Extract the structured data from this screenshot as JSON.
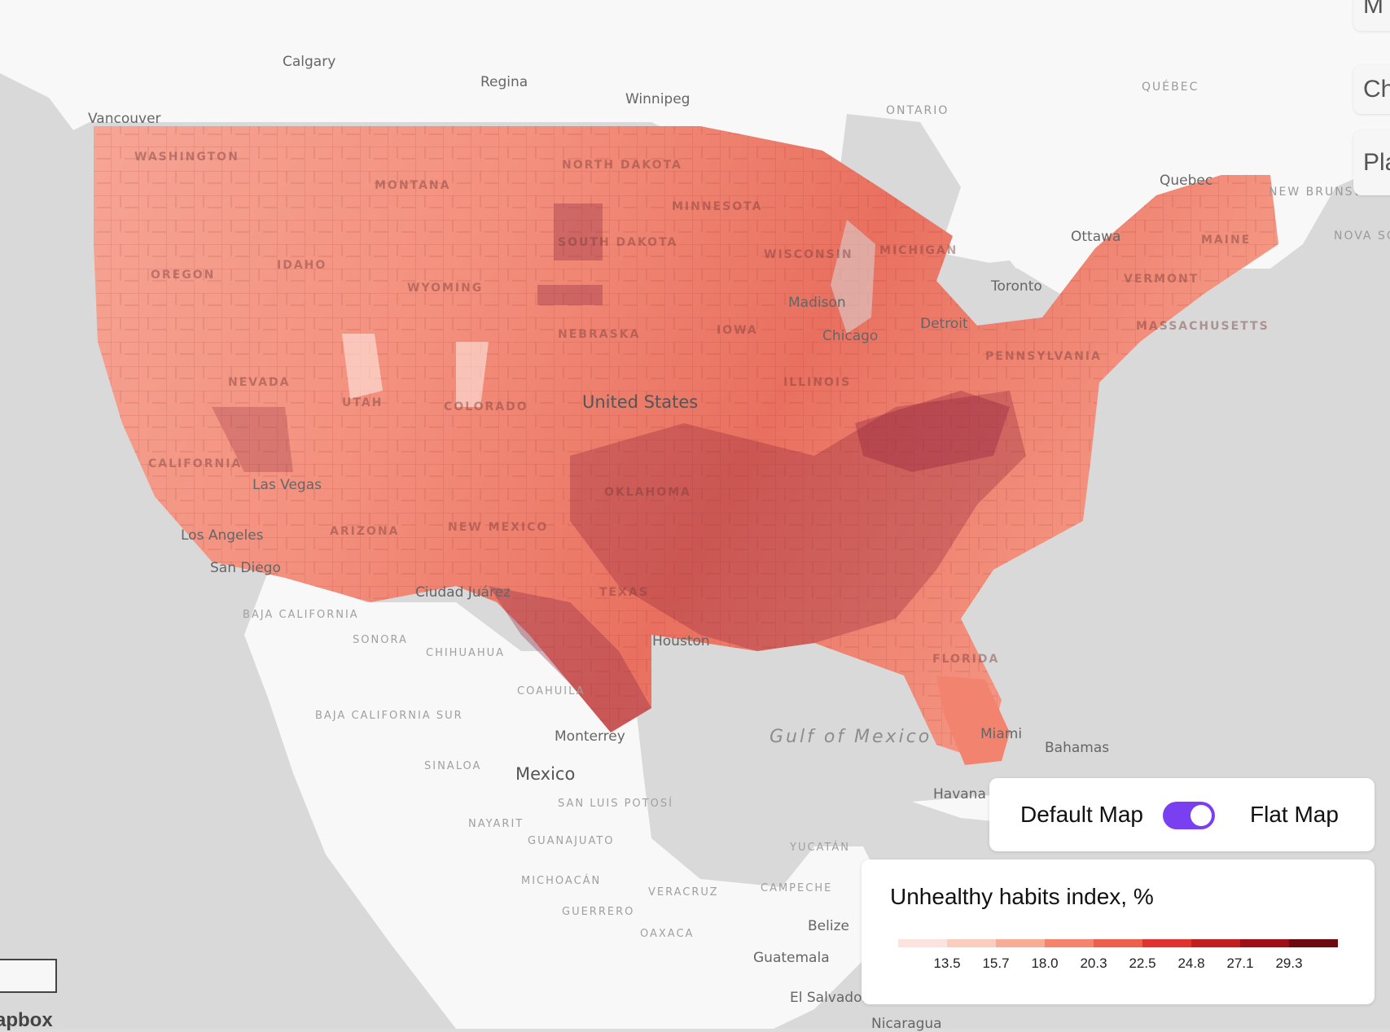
{
  "colors": {
    "land": "#f8f8f8",
    "water": "#d9d9d9",
    "accent": "#7b3ff2",
    "scale": [
      "#fde3de",
      "#fbcdbf",
      "#f8ab95",
      "#f4846b",
      "#ee5f4c",
      "#e0332f",
      "#c21d20",
      "#9c1016",
      "#6d0a0f"
    ]
  },
  "map": {
    "labels": [
      {
        "text": "Calgary",
        "cls": "city"
      },
      {
        "text": "Regina",
        "cls": "city"
      },
      {
        "text": "Winnipeg",
        "cls": "city"
      },
      {
        "text": "Vancouver",
        "cls": "city"
      },
      {
        "text": "ONTARIO",
        "cls": "region"
      },
      {
        "text": "QUÉBEC",
        "cls": "region"
      },
      {
        "text": "Quebec",
        "cls": "city"
      },
      {
        "text": "NEW BRUNSWICK",
        "cls": "region"
      },
      {
        "text": "NOVA SCOTIA",
        "cls": "region"
      },
      {
        "text": "Ottawa",
        "cls": "city"
      },
      {
        "text": "Toronto",
        "cls": "city"
      },
      {
        "text": "WASHINGTON",
        "cls": "state"
      },
      {
        "text": "MONTANA",
        "cls": "state"
      },
      {
        "text": "NORTH DAKOTA",
        "cls": "state"
      },
      {
        "text": "MINNESOTA",
        "cls": "state"
      },
      {
        "text": "SOUTH DAKOTA",
        "cls": "state"
      },
      {
        "text": "OREGON",
        "cls": "state"
      },
      {
        "text": "IDAHO",
        "cls": "state"
      },
      {
        "text": "WYOMING",
        "cls": "state"
      },
      {
        "text": "WISCONSIN",
        "cls": "state"
      },
      {
        "text": "MICHIGAN",
        "cls": "state"
      },
      {
        "text": "MAINE",
        "cls": "state"
      },
      {
        "text": "VERMONT",
        "cls": "state"
      },
      {
        "text": "MASSACHUSETTS",
        "cls": "state"
      },
      {
        "text": "Madison",
        "cls": "city"
      },
      {
        "text": "Detroit",
        "cls": "city"
      },
      {
        "text": "Chicago",
        "cls": "city"
      },
      {
        "text": "NEBRASKA",
        "cls": "state"
      },
      {
        "text": "IOWA",
        "cls": "state"
      },
      {
        "text": "PENNSYLVANIA",
        "cls": "state"
      },
      {
        "text": "NEVADA",
        "cls": "state"
      },
      {
        "text": "UTAH",
        "cls": "state"
      },
      {
        "text": "COLORADO",
        "cls": "state"
      },
      {
        "text": "United States",
        "cls": "country"
      },
      {
        "text": "ILLINOIS",
        "cls": "state"
      },
      {
        "text": "CALIFORNIA",
        "cls": "state"
      },
      {
        "text": "Las Vegas",
        "cls": "city"
      },
      {
        "text": "Los Angeles",
        "cls": "city"
      },
      {
        "text": "San Diego",
        "cls": "city"
      },
      {
        "text": "ARIZONA",
        "cls": "state"
      },
      {
        "text": "NEW MEXICO",
        "cls": "state"
      },
      {
        "text": "OKLAHOMA",
        "cls": "state"
      },
      {
        "text": "TEXAS",
        "cls": "state"
      },
      {
        "text": "Ciudad Juárez",
        "cls": "city"
      },
      {
        "text": "BAJA CALIFORNIA",
        "cls": "region2"
      },
      {
        "text": "SONORA",
        "cls": "region2"
      },
      {
        "text": "CHIHUAHUA",
        "cls": "region2"
      },
      {
        "text": "Houston",
        "cls": "city"
      },
      {
        "text": "FLORIDA",
        "cls": "state"
      },
      {
        "text": "Miami",
        "cls": "city"
      },
      {
        "text": "COAHUILA",
        "cls": "region2"
      },
      {
        "text": "BAJA CALIFORNIA SUR",
        "cls": "region2"
      },
      {
        "text": "Monterrey",
        "cls": "city"
      },
      {
        "text": "Gulf of Mexico",
        "cls": "water"
      },
      {
        "text": "Bahamas",
        "cls": "city"
      },
      {
        "text": "SINALOA",
        "cls": "region2"
      },
      {
        "text": "Mexico",
        "cls": "country"
      },
      {
        "text": "SAN LUIS POTOSÍ",
        "cls": "region2"
      },
      {
        "text": "Havana",
        "cls": "city"
      },
      {
        "text": "NAYARIT",
        "cls": "region2"
      },
      {
        "text": "GUANAJUATO",
        "cls": "region2"
      },
      {
        "text": "YUCATÁN",
        "cls": "region2"
      },
      {
        "text": "MICHOACÁN",
        "cls": "region2"
      },
      {
        "text": "VERACRUZ",
        "cls": "region2"
      },
      {
        "text": "CAMPECHE",
        "cls": "region2"
      },
      {
        "text": "Belize",
        "cls": "city"
      },
      {
        "text": "GUERRERO",
        "cls": "region2"
      },
      {
        "text": "OAXACA",
        "cls": "region2"
      },
      {
        "text": "Guatemala",
        "cls": "city"
      },
      {
        "text": "El Salvador",
        "cls": "city"
      },
      {
        "text": "Nicaragua",
        "cls": "city"
      }
    ]
  },
  "toggle": {
    "left_label": "Default Map",
    "right_label": "Flat Map",
    "state": "on"
  },
  "legend": {
    "title": "Unhealthy habits index, %",
    "ticks": [
      "13.5",
      "15.7",
      "18.0",
      "20.3",
      "22.5",
      "24.8",
      "27.1",
      "29.3"
    ]
  },
  "side_buttons": [
    "M",
    "Ch",
    "Pla"
  ],
  "attribution": {
    "logo": "apbox"
  }
}
